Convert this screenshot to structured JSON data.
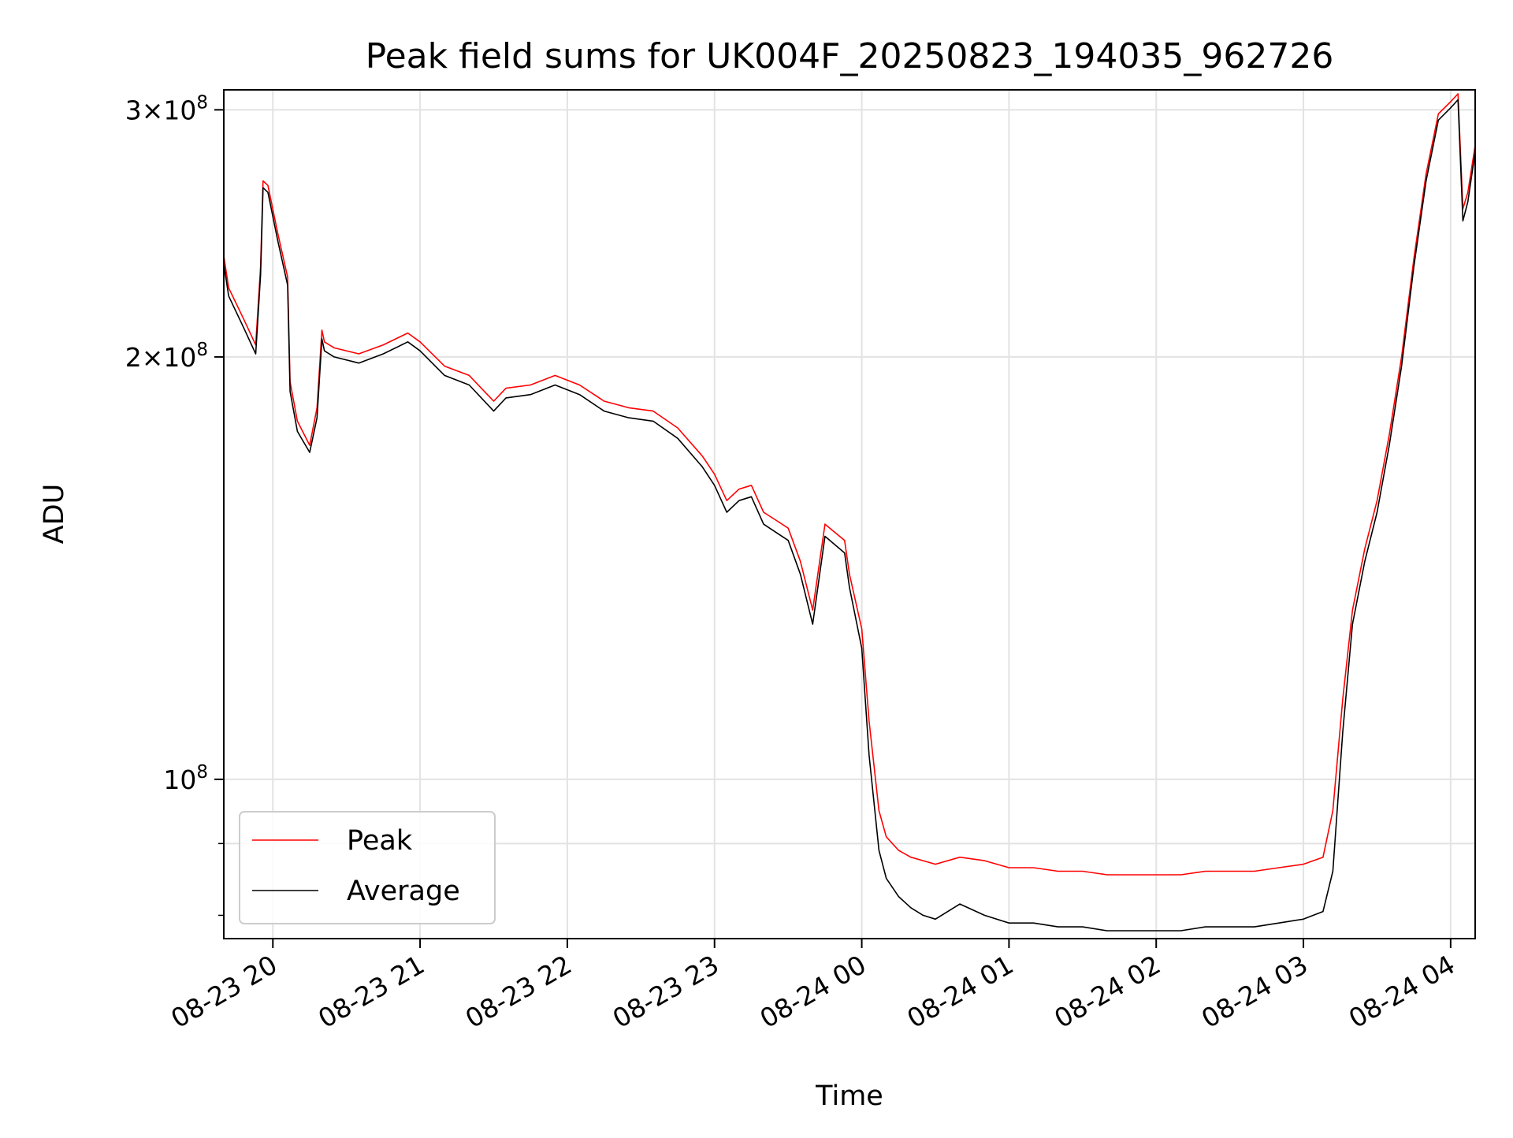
{
  "chart_data": {
    "type": "line",
    "title": "Peak field sums for UK004F_20250823_194035_962726",
    "xlabel": "Time",
    "ylabel": "ADU",
    "y_scale": "log",
    "ylim": [
      77000000,
      310000000
    ],
    "xlim": [
      "2025-08-23 19:40",
      "2025-08-24 04:10"
    ],
    "x_ticks": [
      "08-23 20",
      "08-23 21",
      "08-23 22",
      "08-23 23",
      "08-24 00",
      "08-24 01",
      "08-24 02",
      "08-24 03",
      "08-24 04"
    ],
    "y_ticks": [
      {
        "value": 100000000,
        "base": "10",
        "exp": "8",
        "mult": ""
      },
      {
        "value": 200000000,
        "base": "10",
        "exp": "8",
        "mult": "2×"
      },
      {
        "value": 300000000,
        "base": "10",
        "exp": "8",
        "mult": "3×"
      }
    ],
    "grid": true,
    "legend_position": "lower-left",
    "series": [
      {
        "name": "Peak",
        "color": "#ff0000",
        "x": [
          "2025-08-23 19:40",
          "2025-08-23 19:42",
          "2025-08-23 19:48",
          "2025-08-23 19:53",
          "2025-08-23 19:55",
          "2025-08-23 19:56",
          "2025-08-23 19:58",
          "2025-08-23 20:02",
          "2025-08-23 20:06",
          "2025-08-23 20:07",
          "2025-08-23 20:10",
          "2025-08-23 20:15",
          "2025-08-23 20:18",
          "2025-08-23 20:20",
          "2025-08-23 20:21",
          "2025-08-23 20:25",
          "2025-08-23 20:35",
          "2025-08-23 20:45",
          "2025-08-23 20:55",
          "2025-08-23 21:00",
          "2025-08-23 21:10",
          "2025-08-23 21:20",
          "2025-08-23 21:30",
          "2025-08-23 21:35",
          "2025-08-23 21:45",
          "2025-08-23 21:55",
          "2025-08-23 22:05",
          "2025-08-23 22:15",
          "2025-08-23 22:25",
          "2025-08-23 22:35",
          "2025-08-23 22:45",
          "2025-08-23 22:55",
          "2025-08-23 23:00",
          "2025-08-23 23:05",
          "2025-08-23 23:10",
          "2025-08-23 23:15",
          "2025-08-23 23:20",
          "2025-08-23 23:25",
          "2025-08-23 23:30",
          "2025-08-23 23:35",
          "2025-08-23 23:40",
          "2025-08-23 23:45",
          "2025-08-23 23:53",
          "2025-08-23 23:55",
          "2025-08-24 00:00",
          "2025-08-24 00:03",
          "2025-08-24 00:07",
          "2025-08-24 00:10",
          "2025-08-24 00:15",
          "2025-08-24 00:20",
          "2025-08-24 00:25",
          "2025-08-24 00:30",
          "2025-08-24 00:40",
          "2025-08-24 00:50",
          "2025-08-24 01:00",
          "2025-08-24 01:10",
          "2025-08-24 01:20",
          "2025-08-24 01:30",
          "2025-08-24 01:40",
          "2025-08-24 01:50",
          "2025-08-24 02:00",
          "2025-08-24 02:10",
          "2025-08-24 02:20",
          "2025-08-24 02:30",
          "2025-08-24 02:40",
          "2025-08-24 02:50",
          "2025-08-24 03:00",
          "2025-08-24 03:08",
          "2025-08-24 03:12",
          "2025-08-24 03:16",
          "2025-08-24 03:20",
          "2025-08-24 03:25",
          "2025-08-24 03:30",
          "2025-08-24 03:35",
          "2025-08-24 03:40",
          "2025-08-24 03:45",
          "2025-08-24 03:50",
          "2025-08-24 03:55",
          "2025-08-24 04:00",
          "2025-08-24 04:03",
          "2025-08-24 04:05",
          "2025-08-24 04:07",
          "2025-08-24 04:10"
        ],
        "values": [
          236000000,
          224000000,
          213000000,
          204000000,
          232000000,
          267000000,
          265000000,
          245000000,
          228000000,
          192000000,
          180000000,
          173000000,
          184000000,
          209000000,
          205000000,
          203000000,
          201000000,
          204000000,
          208000000,
          205000000,
          197000000,
          194000000,
          186000000,
          190000000,
          191000000,
          194000000,
          191000000,
          186000000,
          184000000,
          183000000,
          178000000,
          170000000,
          165000000,
          158000000,
          161000000,
          162000000,
          155000000,
          153000000,
          151000000,
          143000000,
          132000000,
          152000000,
          148000000,
          140000000,
          128000000,
          110000000,
          95000000,
          91000000,
          89000000,
          88000000,
          87500000,
          87000000,
          88000000,
          87500000,
          86500000,
          86500000,
          86000000,
          86000000,
          85500000,
          85500000,
          85500000,
          85500000,
          86000000,
          86000000,
          86000000,
          86500000,
          87000000,
          88000000,
          95000000,
          114000000,
          132000000,
          146000000,
          158000000,
          176000000,
          200000000,
          235000000,
          270000000,
          298000000,
          304000000,
          308000000,
          255000000,
          262000000,
          283000000
        ]
      },
      {
        "name": "Average",
        "color": "#000000",
        "x": [
          "2025-08-23 19:40",
          "2025-08-23 19:42",
          "2025-08-23 19:48",
          "2025-08-23 19:53",
          "2025-08-23 19:55",
          "2025-08-23 19:56",
          "2025-08-23 19:58",
          "2025-08-23 20:02",
          "2025-08-23 20:06",
          "2025-08-23 20:07",
          "2025-08-23 20:10",
          "2025-08-23 20:15",
          "2025-08-23 20:18",
          "2025-08-23 20:20",
          "2025-08-23 20:21",
          "2025-08-23 20:25",
          "2025-08-23 20:35",
          "2025-08-23 20:45",
          "2025-08-23 20:55",
          "2025-08-23 21:00",
          "2025-08-23 21:10",
          "2025-08-23 21:20",
          "2025-08-23 21:30",
          "2025-08-23 21:35",
          "2025-08-23 21:45",
          "2025-08-23 21:55",
          "2025-08-23 22:05",
          "2025-08-23 22:15",
          "2025-08-23 22:25",
          "2025-08-23 22:35",
          "2025-08-23 22:45",
          "2025-08-23 22:55",
          "2025-08-23 23:00",
          "2025-08-23 23:05",
          "2025-08-23 23:10",
          "2025-08-23 23:15",
          "2025-08-23 23:20",
          "2025-08-23 23:25",
          "2025-08-23 23:30",
          "2025-08-23 23:35",
          "2025-08-23 23:40",
          "2025-08-23 23:45",
          "2025-08-23 23:53",
          "2025-08-23 23:55",
          "2025-08-24 00:00",
          "2025-08-24 00:03",
          "2025-08-24 00:07",
          "2025-08-24 00:10",
          "2025-08-24 00:15",
          "2025-08-24 00:20",
          "2025-08-24 00:25",
          "2025-08-24 00:30",
          "2025-08-24 00:40",
          "2025-08-24 00:50",
          "2025-08-24 01:00",
          "2025-08-24 01:10",
          "2025-08-24 01:20",
          "2025-08-24 01:30",
          "2025-08-24 01:40",
          "2025-08-24 01:50",
          "2025-08-24 02:00",
          "2025-08-24 02:10",
          "2025-08-24 02:20",
          "2025-08-24 02:30",
          "2025-08-24 02:40",
          "2025-08-24 02:50",
          "2025-08-24 03:00",
          "2025-08-24 03:08",
          "2025-08-24 03:12",
          "2025-08-24 03:16",
          "2025-08-24 03:20",
          "2025-08-24 03:25",
          "2025-08-24 03:30",
          "2025-08-24 03:35",
          "2025-08-24 03:40",
          "2025-08-24 03:45",
          "2025-08-24 03:50",
          "2025-08-24 03:55",
          "2025-08-24 04:00",
          "2025-08-24 04:03",
          "2025-08-24 04:05",
          "2025-08-24 04:07",
          "2025-08-24 04:10"
        ],
        "values": [
          233000000,
          221000000,
          210000000,
          201000000,
          229000000,
          264000000,
          262000000,
          242000000,
          225000000,
          189000000,
          177000000,
          171000000,
          181000000,
          206000000,
          202000000,
          200000000,
          198000000,
          201000000,
          205000000,
          202000000,
          194000000,
          191000000,
          183000000,
          187000000,
          188000000,
          191000000,
          188000000,
          183000000,
          181000000,
          180000000,
          175000000,
          167000000,
          162000000,
          155000000,
          158000000,
          159000000,
          152000000,
          150000000,
          148000000,
          140000000,
          129000000,
          149000000,
          145000000,
          137000000,
          124000000,
          104000000,
          89000000,
          85000000,
          82500000,
          81000000,
          80000000,
          79500000,
          81500000,
          80000000,
          79000000,
          79000000,
          78500000,
          78500000,
          78000000,
          78000000,
          78000000,
          78000000,
          78500000,
          78500000,
          78500000,
          79000000,
          79500000,
          80500000,
          86000000,
          108000000,
          129000000,
          143000000,
          155000000,
          173000000,
          197000000,
          232000000,
          267000000,
          295000000,
          301000000,
          305000000,
          250000000,
          258000000,
          280000000
        ]
      }
    ]
  }
}
